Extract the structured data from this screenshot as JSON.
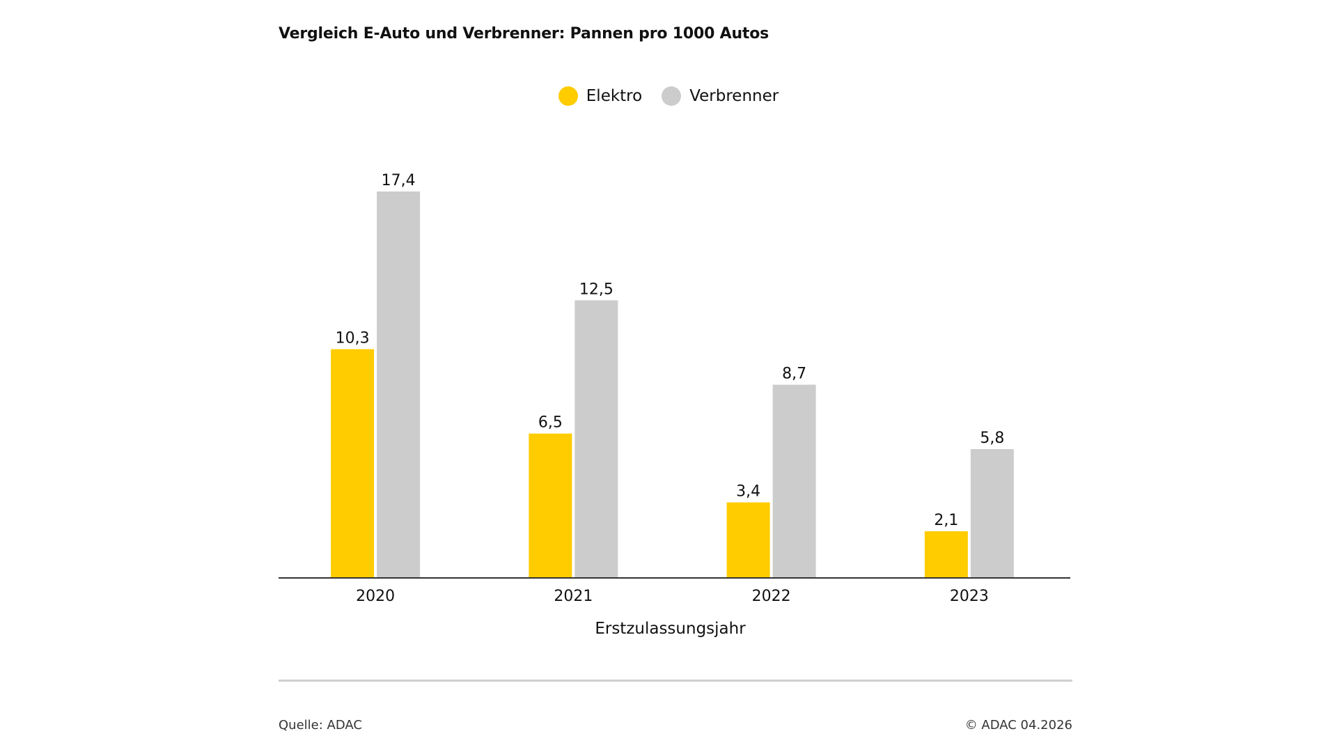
{
  "chart_data": {
    "type": "bar",
    "title": "Vergleich E-Auto und Verbrenner: Pannen pro 1000 Autos",
    "xlabel": "Erstzulassungsjahr",
    "ylabel": "",
    "categories": [
      "2020",
      "2021",
      "2022",
      "2023"
    ],
    "series": [
      {
        "name": "Elektro",
        "color": "#FFCC00",
        "values": [
          10.3,
          6.5,
          3.4,
          2.1
        ],
        "labels": [
          "10,3",
          "6,5",
          "3,4",
          "2,1"
        ]
      },
      {
        "name": "Verbrenner",
        "color": "#CCCCCC",
        "values": [
          17.4,
          12.5,
          8.7,
          5.8
        ],
        "labels": [
          "17,4",
          "12,5",
          "8,7",
          "5,8"
        ]
      }
    ],
    "ylim": [
      0,
      17.4
    ],
    "grid": false,
    "legend_position": "top-center"
  },
  "footer": {
    "source": "Quelle: ADAC",
    "copyright": "© ADAC 04.2026"
  }
}
